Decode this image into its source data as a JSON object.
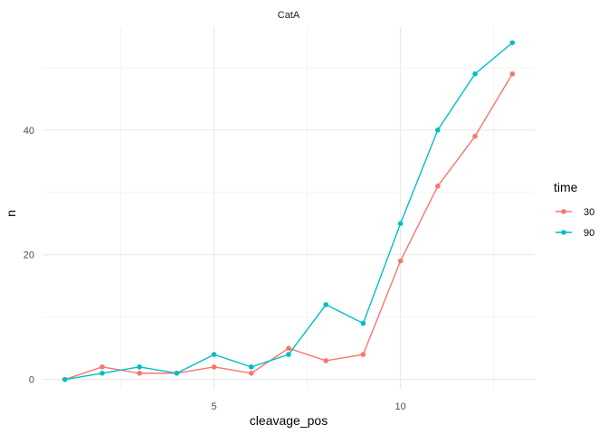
{
  "chart_data": {
    "type": "line",
    "title": "CatA",
    "xlabel": "cleavage_pos",
    "ylabel": "n",
    "xlim": [
      0.4,
      13.6
    ],
    "ylim": [
      -1.5,
      56.5
    ],
    "xticks": [
      5,
      10
    ],
    "yticks": [
      0,
      20,
      40
    ],
    "grid": true,
    "legend": {
      "title": "time",
      "position": "right"
    },
    "series": [
      {
        "name": "30",
        "color": "#F8766D",
        "x": [
          1,
          2,
          3,
          4,
          5,
          6,
          7,
          8,
          9,
          10,
          11,
          12,
          13
        ],
        "y": [
          0,
          2,
          1,
          1,
          2,
          1,
          5,
          3,
          4,
          19,
          31,
          39,
          49
        ]
      },
      {
        "name": "90",
        "color": "#00BFC4",
        "x": [
          1,
          2,
          3,
          4,
          5,
          6,
          7,
          8,
          9,
          10,
          11,
          12,
          13
        ],
        "y": [
          0,
          1,
          2,
          1,
          4,
          2,
          4,
          12,
          9,
          25,
          40,
          49,
          54
        ]
      }
    ]
  }
}
